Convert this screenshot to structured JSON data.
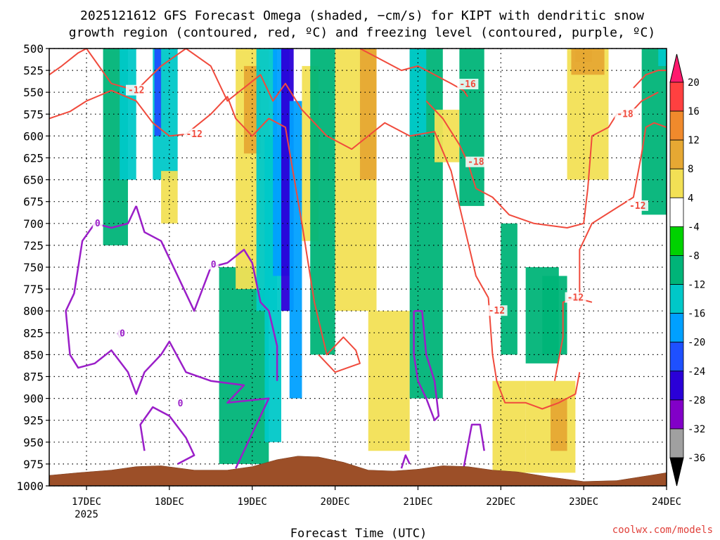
{
  "page": {
    "title_line1": "2025121612 GFS Forecast Omega (shaded, −cm/s) for KIPT with dendritic snow",
    "title_line2": "growth region (contoured, red, ºC) and freezing level (contoured, purple, ºC)",
    "xlabel": "Forecast Time (UTC)",
    "credit": "coolwx.com/models"
  },
  "chart_data": {
    "type": "heatmap",
    "x_ticks": [
      "17DEC",
      "18DEC",
      "19DEC",
      "20DEC",
      "21DEC",
      "22DEC",
      "23DEC",
      "24DEC"
    ],
    "x_tick_year": "2025",
    "y_ticks": [
      "500",
      "525",
      "550",
      "575",
      "600",
      "625",
      "650",
      "675",
      "700",
      "725",
      "750",
      "775",
      "800",
      "825",
      "850",
      "875",
      "900",
      "925",
      "950",
      "975",
      "1000"
    ],
    "y_range_hpa": [
      1000,
      500
    ],
    "x_range_days": [
      16.55,
      24.0
    ],
    "grid": true,
    "colorbar_ticks": [
      "20",
      "16",
      "12",
      "8",
      "4",
      "-4",
      "-8",
      "-12",
      "-16",
      "-20",
      "-24",
      "-28",
      "-32",
      "-36"
    ],
    "colorbar_colors": [
      "#ff1a6e",
      "#ff4040",
      "#ff6020",
      "#f08a2c",
      "#e6a833",
      "#e6d447",
      "#f2f27a",
      "#ffffff",
      "#00d200",
      "#00b400",
      "#00b478",
      "#00c8c8",
      "#00a0ff",
      "#1e50ff",
      "#2a00d8",
      "#8200c8",
      "#a000c8",
      "#a0a0a0",
      "#000000"
    ],
    "omega_regions": [
      {
        "x": [
          17.2,
          17.5
        ],
        "p": [
          500,
          725
        ],
        "value": -10
      },
      {
        "x": [
          17.4,
          17.6
        ],
        "p": [
          500,
          650
        ],
        "value": -14
      },
      {
        "x": [
          17.8,
          18.1
        ],
        "p": [
          500,
          650
        ],
        "value": -12
      },
      {
        "x": [
          17.82,
          17.9
        ],
        "p": [
          500,
          600
        ],
        "value": -22
      },
      {
        "x": [
          17.9,
          18.1
        ],
        "p": [
          640,
          700
        ],
        "value": 5
      },
      {
        "x": [
          18.6,
          19.2
        ],
        "p": [
          750,
          975
        ],
        "value": -8
      },
      {
        "x": [
          18.8,
          19.2
        ],
        "p": [
          500,
          775
        ],
        "value": 5
      },
      {
        "x": [
          18.9,
          19.1
        ],
        "p": [
          520,
          620
        ],
        "value": 10
      },
      {
        "x": [
          19.05,
          19.3
        ],
        "p": [
          500,
          800
        ],
        "value": -12
      },
      {
        "x": [
          19.15,
          19.35
        ],
        "p": [
          600,
          950
        ],
        "value": -14
      },
      {
        "x": [
          19.25,
          19.45
        ],
        "p": [
          500,
          760
        ],
        "value": -18
      },
      {
        "x": [
          19.35,
          19.5
        ],
        "p": [
          500,
          800
        ],
        "value": -26
      },
      {
        "x": [
          19.45,
          19.6
        ],
        "p": [
          560,
          900
        ],
        "value": -16
      },
      {
        "x": [
          19.6,
          19.8
        ],
        "p": [
          520,
          720
        ],
        "value": 5
      },
      {
        "x": [
          19.7,
          20.0
        ],
        "p": [
          500,
          850
        ],
        "value": -8
      },
      {
        "x": [
          20.0,
          20.5
        ],
        "p": [
          500,
          800
        ],
        "value": 5
      },
      {
        "x": [
          20.3,
          20.5
        ],
        "p": [
          500,
          650
        ],
        "value": 10
      },
      {
        "x": [
          20.4,
          20.9
        ],
        "p": [
          800,
          960
        ],
        "value": 5
      },
      {
        "x": [
          20.9,
          21.3
        ],
        "p": [
          500,
          900
        ],
        "value": -8
      },
      {
        "x": [
          20.9,
          21.1
        ],
        "p": [
          500,
          600
        ],
        "value": -12
      },
      {
        "x": [
          21.2,
          21.5
        ],
        "p": [
          570,
          630
        ],
        "value": 5
      },
      {
        "x": [
          21.5,
          21.8
        ],
        "p": [
          500,
          680
        ],
        "value": -8
      },
      {
        "x": [
          21.9,
          22.3
        ],
        "p": [
          880,
          985
        ],
        "value": 5
      },
      {
        "x": [
          22.0,
          22.2
        ],
        "p": [
          700,
          850
        ],
        "value": -8
      },
      {
        "x": [
          22.3,
          22.7
        ],
        "p": [
          750,
          860
        ],
        "value": -8
      },
      {
        "x": [
          22.5,
          22.8
        ],
        "p": [
          760,
          850
        ],
        "value": -10
      },
      {
        "x": [
          22.3,
          22.9
        ],
        "p": [
          880,
          985
        ],
        "value": 5
      },
      {
        "x": [
          22.6,
          22.8
        ],
        "p": [
          900,
          960
        ],
        "value": 10
      },
      {
        "x": [
          22.8,
          23.3
        ],
        "p": [
          500,
          650
        ],
        "value": 5
      },
      {
        "x": [
          22.85,
          23.25
        ],
        "p": [
          500,
          530
        ],
        "value": 10
      },
      {
        "x": [
          22.9,
          23.1
        ],
        "p": [
          500,
          515
        ],
        "value": 12
      },
      {
        "x": [
          23.7,
          24.0
        ],
        "p": [
          500,
          690
        ],
        "value": -8
      },
      {
        "x": [
          23.9,
          24.0
        ],
        "p": [
          500,
          520
        ],
        "value": -12
      }
    ],
    "terrain_p": [
      [
        16.55,
        988
      ],
      [
        16.9,
        985
      ],
      [
        17.3,
        982
      ],
      [
        17.6,
        978
      ],
      [
        17.9,
        977
      ],
      [
        18.3,
        982
      ],
      [
        18.7,
        982
      ],
      [
        19.0,
        978
      ],
      [
        19.3,
        970
      ],
      [
        19.55,
        966
      ],
      [
        19.8,
        967
      ],
      [
        20.1,
        973
      ],
      [
        20.4,
        982
      ],
      [
        20.7,
        983
      ],
      [
        21.0,
        981
      ],
      [
        21.3,
        977
      ],
      [
        21.6,
        978
      ],
      [
        21.9,
        982
      ],
      [
        22.2,
        984
      ],
      [
        22.6,
        990
      ],
      [
        23.0,
        995
      ],
      [
        23.4,
        994
      ],
      [
        23.8,
        988
      ],
      [
        24.0,
        985
      ]
    ],
    "dgz_contours": [
      {
        "label": "-12",
        "label_at": [
          17.5,
          548
        ],
        "points": [
          [
            16.55,
            530
          ],
          [
            16.7,
            520
          ],
          [
            16.9,
            505
          ],
          [
            17.0,
            500
          ],
          [
            17.3,
            540
          ],
          [
            17.6,
            548
          ],
          [
            17.9,
            520
          ],
          [
            18.2,
            500
          ],
          [
            18.5,
            520
          ],
          [
            18.7,
            560
          ],
          [
            18.9,
            545
          ],
          [
            19.1,
            530
          ],
          [
            19.25,
            560
          ],
          [
            19.4,
            540
          ],
          [
            19.6,
            570
          ],
          [
            19.9,
            600
          ],
          [
            20.2,
            615
          ],
          [
            20.4,
            600
          ],
          [
            20.6,
            585
          ],
          [
            20.9,
            600
          ],
          [
            21.2,
            595
          ],
          [
            21.4,
            640
          ],
          [
            21.55,
            700
          ],
          [
            21.7,
            760
          ],
          [
            21.85,
            785
          ]
        ]
      },
      {
        "label": "-12",
        "label_at": [
          18.2,
          598
        ],
        "points": [
          [
            16.55,
            580
          ],
          [
            16.8,
            572
          ],
          [
            17.0,
            560
          ],
          [
            17.3,
            548
          ],
          [
            17.6,
            560
          ],
          [
            17.8,
            585
          ],
          [
            18.0,
            600
          ],
          [
            18.2,
            598
          ],
          [
            18.5,
            575
          ],
          [
            18.7,
            555
          ],
          [
            18.8,
            580
          ],
          [
            19.0,
            600
          ],
          [
            19.2,
            580
          ],
          [
            19.4,
            590
          ],
          [
            19.6,
            700
          ],
          [
            19.75,
            790
          ],
          [
            19.9,
            850
          ],
          [
            20.1,
            830
          ],
          [
            20.25,
            845
          ],
          [
            20.3,
            860
          ],
          [
            20.0,
            870
          ],
          [
            19.8,
            850
          ]
        ]
      },
      {
        "label": "-16",
        "label_at": [
          21.5,
          541
        ],
        "points": [
          [
            20.3,
            500
          ],
          [
            20.5,
            510
          ],
          [
            20.8,
            525
          ],
          [
            21.0,
            520
          ],
          [
            21.2,
            530
          ],
          [
            21.4,
            540
          ],
          [
            21.55,
            548
          ],
          [
            21.6,
            555
          ]
        ]
      },
      {
        "label": "-18",
        "label_at": [
          21.6,
          630
        ],
        "points": [
          [
            21.1,
            560
          ],
          [
            21.3,
            580
          ],
          [
            21.5,
            610
          ],
          [
            21.6,
            630
          ],
          [
            21.7,
            660
          ],
          [
            21.9,
            670
          ],
          [
            22.1,
            690
          ],
          [
            22.4,
            700
          ],
          [
            22.8,
            705
          ],
          [
            23.0,
            700
          ],
          [
            23.05,
            660
          ],
          [
            23.1,
            600
          ],
          [
            23.3,
            590
          ],
          [
            23.4,
            575
          ],
          [
            23.6,
            570
          ],
          [
            23.7,
            560
          ],
          [
            23.9,
            550
          ]
        ]
      },
      {
        "label": "-18",
        "label_at": [
          23.4,
          575
        ],
        "points": [
          [
            23.6,
            545
          ],
          [
            23.75,
            530
          ],
          [
            23.9,
            525
          ],
          [
            24.0,
            525
          ]
        ]
      },
      {
        "label": "-12",
        "label_at": [
          23.55,
          680
        ],
        "points": [
          [
            22.95,
            790
          ],
          [
            22.95,
            730
          ],
          [
            23.1,
            700
          ],
          [
            23.4,
            682
          ],
          [
            23.6,
            670
          ],
          [
            23.7,
            620
          ],
          [
            23.75,
            590
          ],
          [
            23.85,
            585
          ],
          [
            24.0,
            590
          ]
        ]
      },
      {
        "label": "-12",
        "label_at": [
          21.85,
          800
        ],
        "points": [
          [
            21.85,
            785
          ],
          [
            21.9,
            850
          ],
          [
            21.95,
            880
          ],
          [
            22.05,
            905
          ],
          [
            22.3,
            905
          ],
          [
            22.5,
            912
          ],
          [
            22.7,
            905
          ],
          [
            22.9,
            895
          ],
          [
            22.95,
            870
          ]
        ]
      },
      {
        "label": "-12",
        "label_at": [
          22.8,
          785
        ],
        "points": [
          [
            22.65,
            880
          ],
          [
            22.75,
            830
          ],
          [
            22.75,
            790
          ],
          [
            22.9,
            785
          ],
          [
            23.1,
            790
          ]
        ]
      }
    ],
    "freezing_contours": [
      {
        "label": "0",
        "label_at": [
          17.1,
          700
        ],
        "points": [
          [
            17.6,
            680
          ],
          [
            17.5,
            700
          ],
          [
            17.3,
            705
          ],
          [
            17.1,
            700
          ],
          [
            16.95,
            720
          ],
          [
            16.85,
            780
          ],
          [
            16.75,
            800
          ],
          [
            16.8,
            850
          ],
          [
            16.9,
            865
          ],
          [
            17.1,
            860
          ],
          [
            17.3,
            845
          ],
          [
            17.5,
            870
          ],
          [
            17.6,
            895
          ],
          [
            17.7,
            870
          ],
          [
            17.9,
            850
          ],
          [
            18.0,
            835
          ],
          [
            18.2,
            870
          ],
          [
            18.5,
            880
          ],
          [
            18.9,
            885
          ],
          [
            18.7,
            905
          ],
          [
            19.2,
            900
          ],
          [
            19.0,
            940
          ],
          [
            18.8,
            980
          ]
        ]
      },
      {
        "label": "0",
        "label_at": [
          18.5,
          747
        ],
        "points": [
          [
            17.6,
            680
          ],
          [
            17.7,
            710
          ],
          [
            17.9,
            720
          ],
          [
            18.1,
            760
          ],
          [
            18.3,
            800
          ],
          [
            18.5,
            750
          ],
          [
            18.7,
            745
          ],
          [
            18.9,
            730
          ],
          [
            19.0,
            745
          ],
          [
            19.1,
            790
          ],
          [
            19.2,
            800
          ],
          [
            19.3,
            840
          ],
          [
            19.3,
            880
          ]
        ]
      },
      {
        "label": "0",
        "label_at": [
          17.4,
          826
        ],
        "points": [
          [
            17.4,
            822
          ],
          [
            17.45,
            826
          ],
          [
            17.4,
            830
          ],
          [
            17.38,
            826
          ],
          [
            17.4,
            822
          ]
        ]
      },
      {
        "label": "0",
        "label_at": [
          18.1,
          906
        ],
        "points": [
          [
            17.7,
            960
          ],
          [
            17.65,
            930
          ],
          [
            17.8,
            910
          ],
          [
            18.0,
            920
          ],
          [
            18.2,
            945
          ],
          [
            18.3,
            965
          ],
          [
            18.1,
            975
          ]
        ]
      },
      {
        "label": "",
        "label_at": null,
        "points": [
          [
            20.95,
            800
          ],
          [
            21.05,
            800
          ],
          [
            21.1,
            850
          ],
          [
            21.2,
            880
          ],
          [
            21.25,
            920
          ],
          [
            21.2,
            925
          ],
          [
            21.1,
            900
          ],
          [
            21.0,
            880
          ],
          [
            20.95,
            850
          ],
          [
            20.95,
            800
          ]
        ]
      },
      {
        "label": "",
        "label_at": null,
        "points": [
          [
            21.55,
            980
          ],
          [
            21.65,
            930
          ],
          [
            21.75,
            930
          ],
          [
            21.8,
            960
          ]
        ]
      },
      {
        "label": "",
        "label_at": null,
        "points": [
          [
            20.8,
            980
          ],
          [
            20.85,
            965
          ],
          [
            20.9,
            975
          ]
        ]
      }
    ]
  }
}
